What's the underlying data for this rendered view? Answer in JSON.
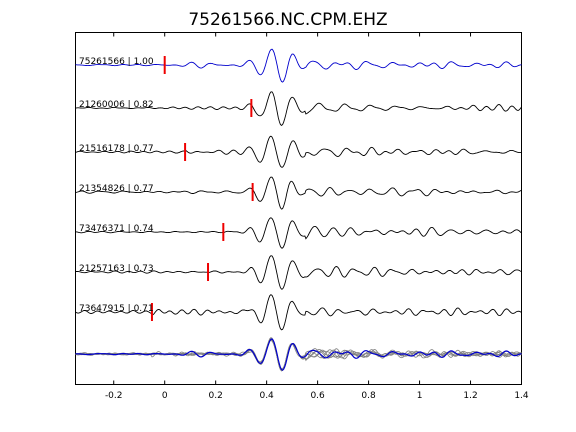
{
  "chart_data": {
    "type": "line",
    "title": "75261566.NC.CPM.EHZ",
    "xlabel": "",
    "ylabel": "",
    "xlim": [
      -0.35,
      1.4
    ],
    "xticks": [
      -0.2,
      0,
      0.2,
      0.4,
      0.6,
      0.8,
      1,
      1.2,
      1.4
    ],
    "xtick_labels": [
      "-0.2",
      "0",
      "0.2",
      "0.4",
      "0.6",
      "0.8",
      "1",
      "1.2",
      "1.4"
    ],
    "grid": false,
    "colors": {
      "reference": "#0000cc",
      "trace": "#000000",
      "pick": "#ee0000",
      "overlay": "#808080"
    },
    "series": [
      {
        "name": "75261566 | 1.00",
        "pick_time": 0.0,
        "color": "#0000cc"
      },
      {
        "name": "21260006 | 0.82",
        "pick_time": 0.34,
        "color": "#000000"
      },
      {
        "name": "21516178 | 0.77",
        "pick_time": 0.08,
        "color": "#000000"
      },
      {
        "name": "21354826 | 0.77",
        "pick_time": 0.345,
        "color": "#000000"
      },
      {
        "name": "73476371 | 0.74",
        "pick_time": 0.23,
        "color": "#000000"
      },
      {
        "name": "21257163 | 0.73",
        "pick_time": 0.17,
        "color": "#000000"
      },
      {
        "name": "73647915 | 0.71",
        "pick_time": -0.05,
        "color": "#000000"
      }
    ],
    "overlay": {
      "traces": "all aligned waveforms stacked",
      "reference_color": "#0000cc"
    }
  }
}
